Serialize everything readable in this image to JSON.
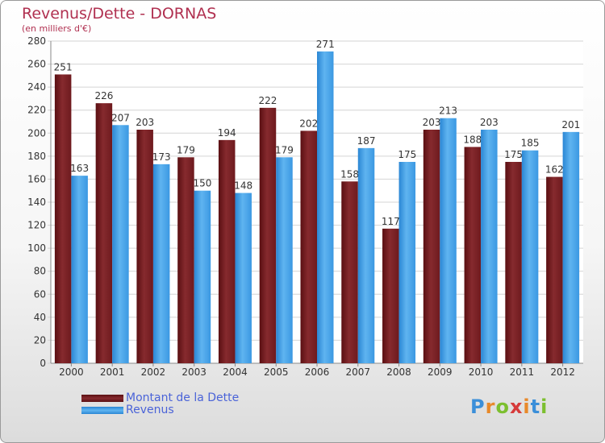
{
  "title": "Revenus/Dette - DORNAS",
  "subtitle": "(en milliers d'€)",
  "logo_text": "Proxiti",
  "colors": {
    "dette": "#7a1f23",
    "revenus": "#3f9ee6",
    "title": "#b03050",
    "legend_text": "#4a63d8"
  },
  "chart_data": {
    "type": "bar",
    "title": "Revenus/Dette - DORNAS",
    "subtitle": "(en milliers d'€)",
    "categories": [
      "2000",
      "2001",
      "2002",
      "2003",
      "2004",
      "2005",
      "2006",
      "2007",
      "2008",
      "2009",
      "2010",
      "2011",
      "2012"
    ],
    "series": [
      {
        "name": "Montant de la Dette",
        "values": [
          251,
          226,
          203,
          179,
          194,
          222,
          202,
          158,
          117,
          203,
          188,
          175,
          162
        ]
      },
      {
        "name": "Revenus",
        "values": [
          163,
          207,
          173,
          150,
          148,
          179,
          271,
          187,
          175,
          213,
          203,
          185,
          201
        ]
      }
    ],
    "ylim": [
      0,
      280
    ],
    "yticks": [
      0,
      20,
      40,
      60,
      80,
      100,
      120,
      140,
      160,
      180,
      200,
      220,
      240,
      260,
      280
    ],
    "grid": true,
    "legend_position": "bottom-left"
  }
}
